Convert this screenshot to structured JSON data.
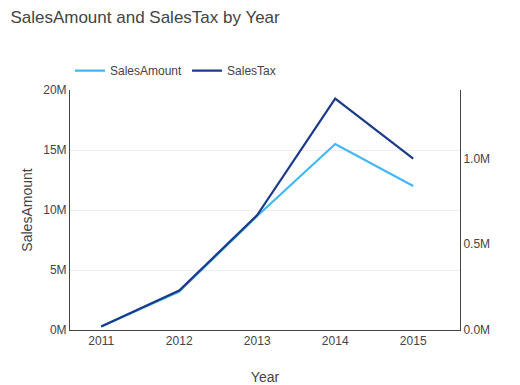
{
  "chart_data": {
    "type": "line",
    "title": "SalesAmount and SalesTax by Year",
    "x_label": "Year",
    "y_label": "SalesAmount",
    "x": [
      2011,
      2012,
      2013,
      2014,
      2015
    ],
    "series": [
      {
        "name": "SalesAmount",
        "color": "#41B8F5",
        "values": [
          0.3,
          3.2,
          9.5,
          15.5,
          12.0
        ]
      },
      {
        "name": "SalesTax",
        "color": "#1B3A8A",
        "values": [
          0.02,
          0.23,
          0.67,
          1.35,
          1.0
        ],
        "axis": "y2"
      }
    ],
    "xlim": [
      2010.6,
      2015.6
    ],
    "xticks": [
      2011,
      2012,
      2013,
      2014,
      2015
    ],
    "ylim": [
      0,
      20
    ],
    "yticks": [
      {
        "value": 0,
        "label": "0M"
      },
      {
        "value": 5,
        "label": "5M"
      },
      {
        "value": 10,
        "label": "10M"
      },
      {
        "value": 15,
        "label": "15M"
      },
      {
        "value": 20,
        "label": "20M"
      }
    ],
    "y2lim": [
      0.0,
      1.4
    ],
    "y2ticks": [
      {
        "value": 0.0,
        "label": "0.0M"
      },
      {
        "value": 0.5,
        "label": "0.5M"
      },
      {
        "value": 1.0,
        "label": "1.0M"
      }
    ],
    "grid": true,
    "legend": "top"
  }
}
